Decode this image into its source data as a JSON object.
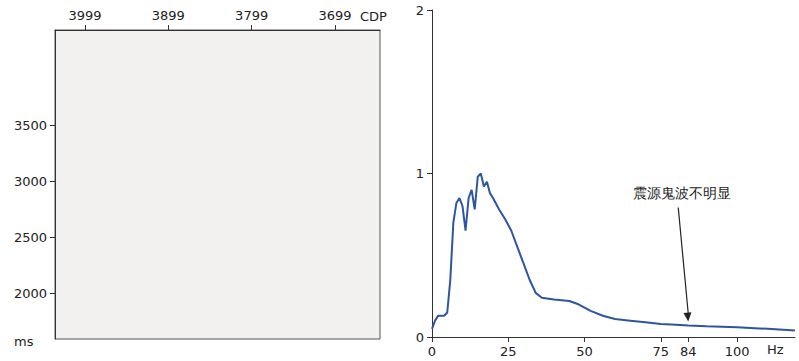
{
  "chart_data": [
    {
      "type": "seismic_section",
      "x_label": "CDP",
      "y_label": "ms",
      "xlim": [
        4035,
        3645
      ],
      "xticks": [
        3999,
        3899,
        3799,
        3699
      ],
      "ylim": [
        4350,
        1590
      ],
      "yticks": [
        2000,
        2500,
        3000,
        3500
      ]
    },
    {
      "type": "line",
      "x_label": "Hz",
      "color": "#2e55a0",
      "grid": false,
      "x": [
        0,
        1,
        2,
        4,
        5,
        6,
        7,
        8,
        9,
        10,
        11,
        12,
        13,
        14,
        15,
        16,
        17,
        18,
        19,
        20,
        22,
        24,
        26,
        28,
        30,
        32,
        34,
        36,
        40,
        45,
        48,
        52,
        56,
        60,
        65,
        70,
        75,
        80,
        84,
        90,
        100,
        110,
        119
      ],
      "values": [
        0.05,
        0.1,
        0.13,
        0.13,
        0.15,
        0.35,
        0.7,
        0.82,
        0.85,
        0.8,
        0.65,
        0.85,
        0.9,
        0.78,
        0.98,
        1.0,
        0.92,
        0.95,
        0.88,
        0.85,
        0.78,
        0.72,
        0.65,
        0.55,
        0.45,
        0.35,
        0.27,
        0.24,
        0.23,
        0.22,
        0.2,
        0.16,
        0.13,
        0.11,
        0.1,
        0.09,
        0.08,
        0.075,
        0.07,
        0.065,
        0.06,
        0.05,
        0.04
      ],
      "xlim": [
        0,
        119
      ],
      "xticks": [
        0,
        25,
        50,
        75,
        84,
        100
      ],
      "ylim": [
        0,
        2
      ],
      "yticks": [
        0,
        1,
        2
      ],
      "annotations": [
        {
          "text": "震源鬼波不明显",
          "x": 84,
          "y": 0.07
        }
      ]
    }
  ]
}
